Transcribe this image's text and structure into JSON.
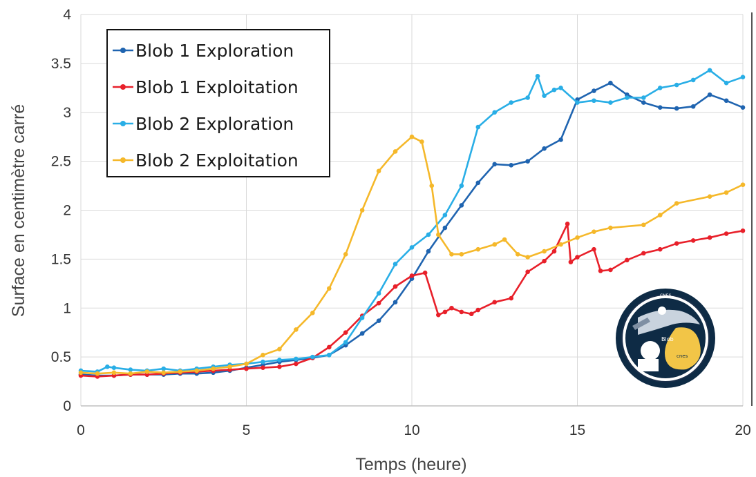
{
  "chart_data": {
    "type": "line",
    "xlabel": "Temps (heure)",
    "ylabel": "Surface en centimètre carré",
    "xlim": [
      0,
      20
    ],
    "ylim": [
      0,
      4
    ],
    "xticks": [
      "0",
      "5",
      "10",
      "15",
      "20"
    ],
    "yticks": [
      "0",
      "0.5",
      "1",
      "1.5",
      "2",
      "2.5",
      "3",
      "3.5",
      "4"
    ],
    "grid": true,
    "legend_position": "top-left",
    "series": [
      {
        "name": "Blob 1 Exploration",
        "color": "#1f64b0",
        "points": [
          [
            0,
            0.32
          ],
          [
            0.5,
            0.31
          ],
          [
            1,
            0.31
          ],
          [
            1.5,
            0.32
          ],
          [
            2,
            0.32
          ],
          [
            2.5,
            0.32
          ],
          [
            3,
            0.33
          ],
          [
            3.5,
            0.33
          ],
          [
            4,
            0.34
          ],
          [
            4.5,
            0.36
          ],
          [
            5,
            0.39
          ],
          [
            5.5,
            0.42
          ],
          [
            6,
            0.45
          ],
          [
            6.5,
            0.47
          ],
          [
            7,
            0.49
          ],
          [
            7.5,
            0.52
          ],
          [
            8,
            0.62
          ],
          [
            8.5,
            0.74
          ],
          [
            9,
            0.87
          ],
          [
            9.5,
            1.06
          ],
          [
            10,
            1.3
          ],
          [
            10.5,
            1.58
          ],
          [
            11,
            1.82
          ],
          [
            11.5,
            2.05
          ],
          [
            12,
            2.28
          ],
          [
            12.5,
            2.47
          ],
          [
            13,
            2.46
          ],
          [
            13.5,
            2.5
          ],
          [
            14,
            2.63
          ],
          [
            14.5,
            2.72
          ],
          [
            15,
            3.13
          ],
          [
            15.5,
            3.22
          ],
          [
            16,
            3.3
          ],
          [
            16.5,
            3.18
          ],
          [
            17,
            3.1
          ],
          [
            17.5,
            3.05
          ],
          [
            18,
            3.04
          ],
          [
            18.5,
            3.06
          ],
          [
            19,
            3.18
          ],
          [
            19.5,
            3.12
          ],
          [
            20,
            3.05
          ]
        ]
      },
      {
        "name": "Blob 1 Exploitation",
        "color": "#e8202a",
        "points": [
          [
            0,
            0.31
          ],
          [
            0.5,
            0.3
          ],
          [
            1,
            0.31
          ],
          [
            1.5,
            0.32
          ],
          [
            2,
            0.32
          ],
          [
            2.5,
            0.33
          ],
          [
            3,
            0.34
          ],
          [
            3.5,
            0.35
          ],
          [
            4,
            0.36
          ],
          [
            4.5,
            0.37
          ],
          [
            5,
            0.38
          ],
          [
            5.5,
            0.39
          ],
          [
            6,
            0.4
          ],
          [
            6.5,
            0.43
          ],
          [
            7,
            0.49
          ],
          [
            7.5,
            0.6
          ],
          [
            8,
            0.75
          ],
          [
            8.5,
            0.92
          ],
          [
            9,
            1.05
          ],
          [
            9.5,
            1.22
          ],
          [
            10,
            1.33
          ],
          [
            10.4,
            1.36
          ],
          [
            10.8,
            0.93
          ],
          [
            11,
            0.96
          ],
          [
            11.2,
            1.0
          ],
          [
            11.5,
            0.96
          ],
          [
            11.8,
            0.94
          ],
          [
            12,
            0.98
          ],
          [
            12.5,
            1.06
          ],
          [
            13,
            1.1
          ],
          [
            13.5,
            1.37
          ],
          [
            14,
            1.48
          ],
          [
            14.3,
            1.58
          ],
          [
            14.7,
            1.86
          ],
          [
            14.8,
            1.47
          ],
          [
            15,
            1.52
          ],
          [
            15.5,
            1.6
          ],
          [
            15.7,
            1.38
          ],
          [
            16,
            1.39
          ],
          [
            16.5,
            1.49
          ],
          [
            17,
            1.56
          ],
          [
            17.5,
            1.6
          ],
          [
            18,
            1.66
          ],
          [
            18.5,
            1.69
          ],
          [
            19,
            1.72
          ],
          [
            19.5,
            1.76
          ],
          [
            20,
            1.79
          ]
        ]
      },
      {
        "name": "Blob 2 Exploration",
        "color": "#29aee6",
        "points": [
          [
            0,
            0.36
          ],
          [
            0.5,
            0.35
          ],
          [
            0.8,
            0.4
          ],
          [
            1,
            0.39
          ],
          [
            1.5,
            0.37
          ],
          [
            2,
            0.36
          ],
          [
            2.5,
            0.38
          ],
          [
            3,
            0.36
          ],
          [
            3.5,
            0.38
          ],
          [
            4,
            0.4
          ],
          [
            4.5,
            0.42
          ],
          [
            5,
            0.43
          ],
          [
            5.5,
            0.45
          ],
          [
            6,
            0.47
          ],
          [
            6.5,
            0.48
          ],
          [
            7,
            0.5
          ],
          [
            7.5,
            0.52
          ],
          [
            8,
            0.65
          ],
          [
            8.5,
            0.9
          ],
          [
            9,
            1.15
          ],
          [
            9.5,
            1.45
          ],
          [
            10,
            1.62
          ],
          [
            10.5,
            1.75
          ],
          [
            11,
            1.95
          ],
          [
            11.5,
            2.25
          ],
          [
            12,
            2.85
          ],
          [
            12.5,
            3.0
          ],
          [
            13,
            3.1
          ],
          [
            13.5,
            3.15
          ],
          [
            13.8,
            3.37
          ],
          [
            14,
            3.17
          ],
          [
            14.3,
            3.23
          ],
          [
            14.5,
            3.25
          ],
          [
            15,
            3.1
          ],
          [
            15.5,
            3.12
          ],
          [
            16,
            3.1
          ],
          [
            16.5,
            3.15
          ],
          [
            17,
            3.15
          ],
          [
            17.5,
            3.25
          ],
          [
            18,
            3.28
          ],
          [
            18.5,
            3.33
          ],
          [
            19,
            3.43
          ],
          [
            19.5,
            3.3
          ],
          [
            20,
            3.36
          ]
        ]
      },
      {
        "name": "Blob 2 Exploitation",
        "color": "#f5b82a",
        "points": [
          [
            0,
            0.34
          ],
          [
            0.5,
            0.33
          ],
          [
            1,
            0.34
          ],
          [
            1.5,
            0.33
          ],
          [
            2,
            0.35
          ],
          [
            2.5,
            0.34
          ],
          [
            3,
            0.35
          ],
          [
            3.5,
            0.36
          ],
          [
            4,
            0.38
          ],
          [
            4.5,
            0.4
          ],
          [
            5,
            0.43
          ],
          [
            5.5,
            0.52
          ],
          [
            6,
            0.58
          ],
          [
            6.5,
            0.78
          ],
          [
            7,
            0.95
          ],
          [
            7.5,
            1.2
          ],
          [
            8,
            1.55
          ],
          [
            8.5,
            2.0
          ],
          [
            9,
            2.4
          ],
          [
            9.5,
            2.6
          ],
          [
            10,
            2.75
          ],
          [
            10.3,
            2.7
          ],
          [
            10.6,
            2.25
          ],
          [
            10.8,
            1.75
          ],
          [
            11.2,
            1.55
          ],
          [
            11.5,
            1.55
          ],
          [
            12,
            1.6
          ],
          [
            12.5,
            1.65
          ],
          [
            12.8,
            1.7
          ],
          [
            13.2,
            1.55
          ],
          [
            13.5,
            1.52
          ],
          [
            14,
            1.58
          ],
          [
            14.5,
            1.65
          ],
          [
            15,
            1.72
          ],
          [
            15.5,
            1.78
          ],
          [
            16,
            1.82
          ],
          [
            17,
            1.85
          ],
          [
            17.5,
            1.95
          ],
          [
            18,
            2.07
          ],
          [
            19,
            2.14
          ],
          [
            19.5,
            2.18
          ],
          [
            20,
            2.26
          ]
        ]
      }
    ]
  },
  "logo": {
    "name": "Blob mission patch",
    "labels": [
      "CNES",
      "Blob",
      "cnes"
    ]
  }
}
